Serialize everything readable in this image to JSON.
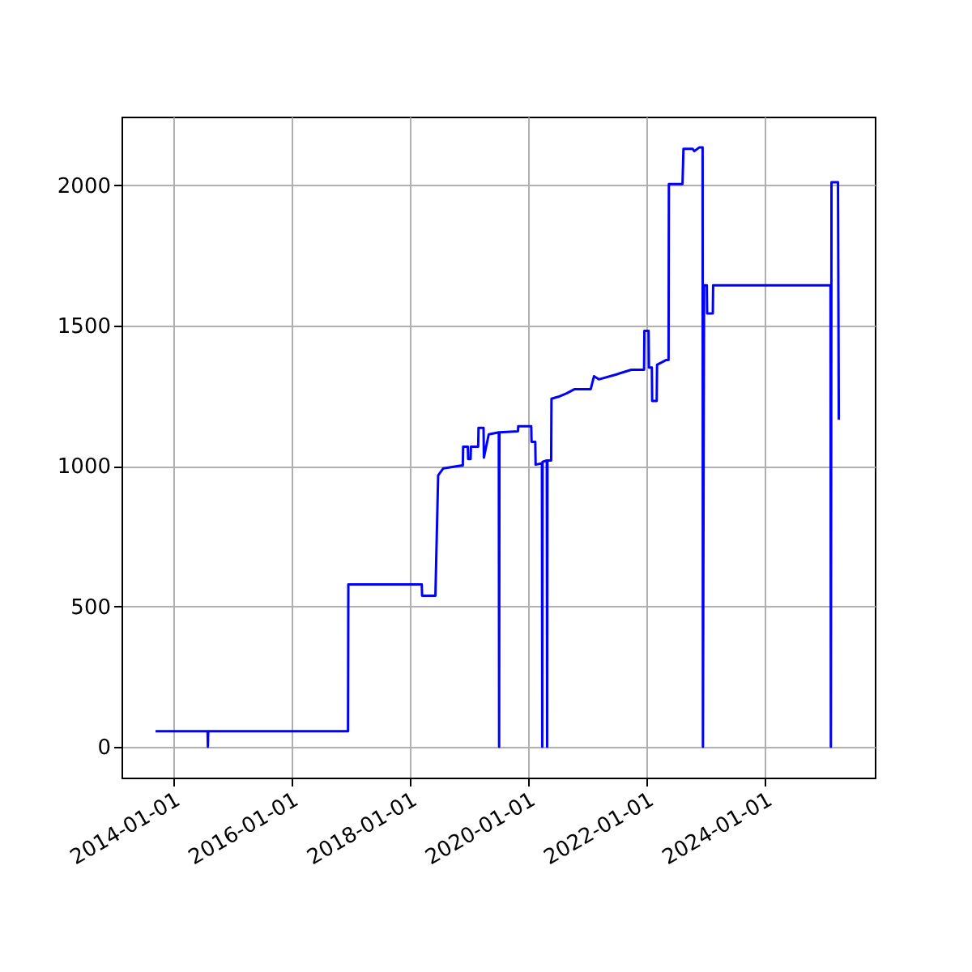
{
  "chart_data": {
    "type": "line",
    "x": [
      "2013-09-18",
      "2014-08-05",
      "2014-08-07",
      "2014-08-09",
      "2016-12-18",
      "2016-12-20",
      "2018-03-18",
      "2018-03-20",
      "2018-06-10",
      "2018-06-27",
      "2018-07-29",
      "2018-11-16",
      "2018-11-26",
      "2018-11-28",
      "2018-12-27",
      "2018-12-29",
      "2019-01-13",
      "2019-01-15",
      "2019-03-01",
      "2019-03-03",
      "2019-04-03",
      "2019-04-05",
      "2019-05-05",
      "2019-07-06",
      "2019-07-08",
      "2019-07-10",
      "2019-11-01",
      "2019-11-03",
      "2020-01-22",
      "2020-01-24",
      "2020-02-16",
      "2020-02-18",
      "2020-03-28",
      "2020-03-30",
      "2020-04-01",
      "2020-04-27",
      "2020-04-29",
      "2020-05-01",
      "2020-05-24",
      "2020-05-26",
      "2020-07-08",
      "2020-08-27",
      "2020-10-16",
      "2021-01-23",
      "2021-02-12",
      "2021-03-14",
      "2021-06-22",
      "2021-09-30",
      "2021-12-18",
      "2021-12-20",
      "2022-01-15",
      "2022-01-17",
      "2022-02-04",
      "2022-02-06",
      "2022-03-06",
      "2022-03-08",
      "2022-05-04",
      "2022-05-18",
      "2022-05-20",
      "2022-08-12",
      "2022-08-18",
      "2022-10-14",
      "2022-10-24",
      "2022-11-23",
      "2022-12-14",
      "2022-12-16",
      "2022-12-23",
      "2023-01-09",
      "2023-01-11",
      "2023-02-15",
      "2023-02-17",
      "2025-02-10",
      "2025-02-12",
      "2025-02-16",
      "2025-03-28",
      "2025-04-02"
    ],
    "series": [
      {
        "color": "#0000ff",
        "values": [
          55,
          55,
          0,
          55,
          55,
          578,
          578,
          538,
          538,
          967,
          992,
          1002,
          1002,
          1069,
          1069,
          1025,
          1025,
          1069,
          1069,
          1136,
          1136,
          1030,
          1113,
          1120,
          0,
          1120,
          1124,
          1142,
          1142,
          1086,
          1086,
          1005,
          1010,
          0,
          1015,
          1020,
          0,
          1020,
          1020,
          1240,
          1247,
          1259,
          1274,
          1274,
          1320,
          1309,
          1325,
          1343,
          1343,
          1482,
          1482,
          1351,
          1351,
          1232,
          1232,
          1361,
          1378,
          1378,
          2005,
          2005,
          2130,
          2130,
          2122,
          2135,
          2135,
          0,
          1644,
          1644,
          1544,
          1544,
          1644,
          1644,
          0,
          2011,
          2011,
          1165
        ]
      }
    ],
    "xlim": [
      "2013-02-20",
      "2025-11-10"
    ],
    "xticks": [
      "2014-01-01",
      "2016-01-01",
      "2018-01-01",
      "2020-01-01",
      "2022-01-01",
      "2024-01-01"
    ],
    "ylim": [
      -110,
      2245
    ],
    "yticks": [
      0,
      500,
      1000,
      1500,
      2000
    ],
    "grid": true
  }
}
